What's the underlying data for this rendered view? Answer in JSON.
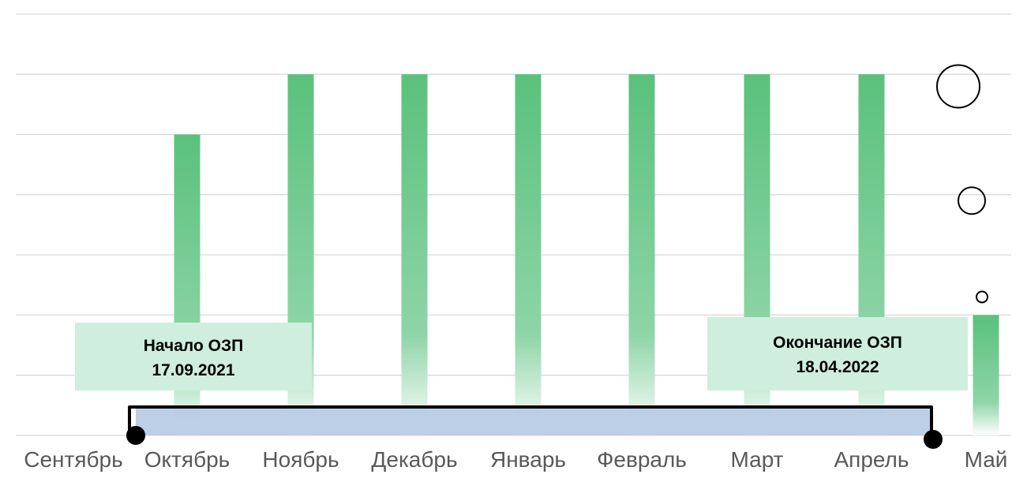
{
  "chart_data": {
    "type": "bar",
    "categories": [
      "Сентябрь",
      "Октябрь",
      "Ноябрь",
      "Декабрь",
      "Январь",
      "Февраль",
      "Март",
      "Апрель",
      "Май"
    ],
    "values": [
      0,
      5,
      6,
      6,
      6,
      6,
      6,
      6,
      2
    ],
    "ylim": [
      0,
      7
    ],
    "grid": true,
    "bar_color": "#5ac17c",
    "grid_color": "#d9d9d9",
    "period_band_color": "#b4c8e4",
    "callout_color": "#cfeedd",
    "period": {
      "start": {
        "label": "Начало ОЗП",
        "date": "17.09.2021"
      },
      "end": {
        "label": "Окончание ОЗП",
        "date": "18.04.2022"
      }
    },
    "circles": [
      {
        "category": "Май",
        "value": 5.8,
        "size": "large"
      },
      {
        "category": "Май",
        "value": 3.9,
        "size": "medium"
      },
      {
        "category": "Май",
        "value": 2.3,
        "size": "small"
      }
    ]
  }
}
